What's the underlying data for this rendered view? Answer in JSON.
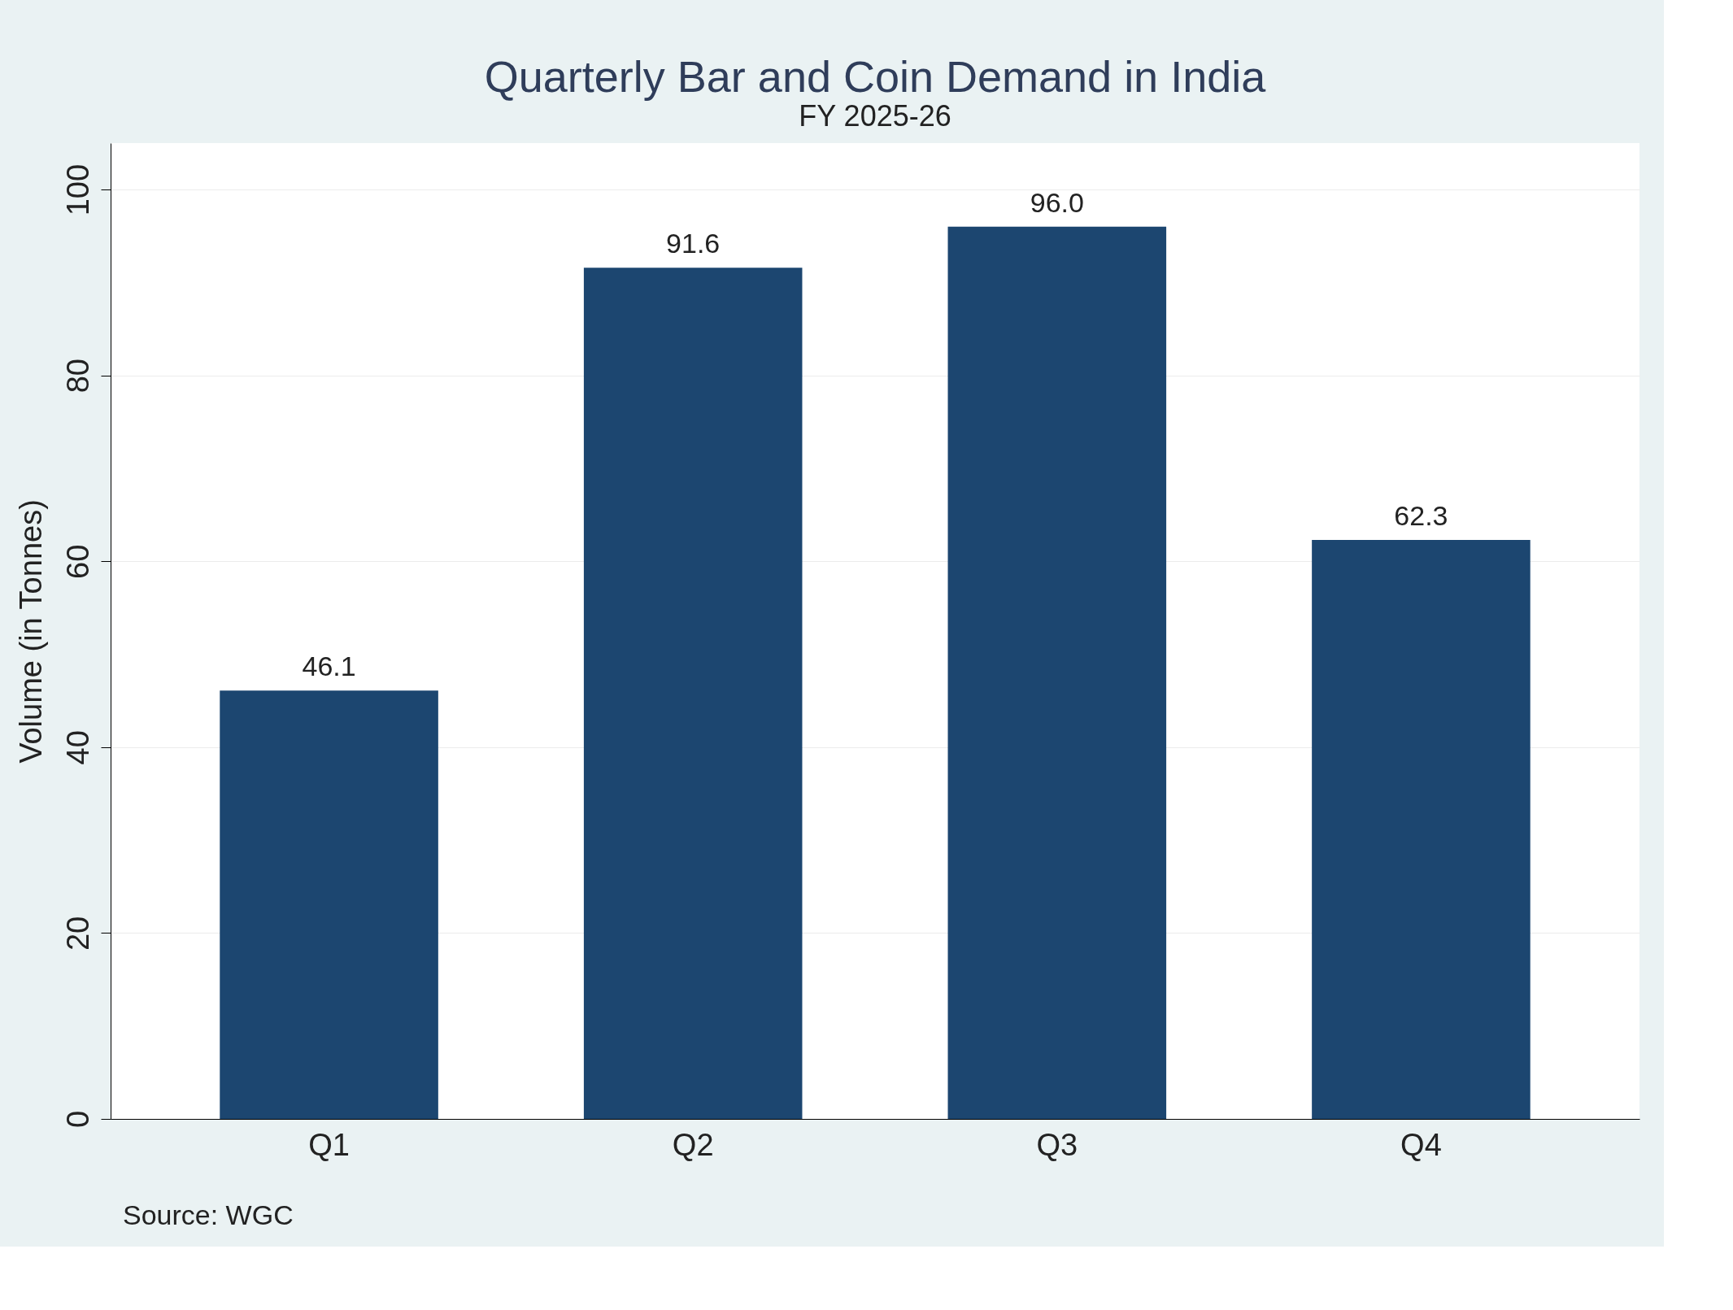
{
  "chart_data": {
    "type": "bar",
    "title": "Quarterly Bar and Coin Demand in India",
    "subtitle": "FY 2025-26",
    "ylabel": "Volume (in Tonnes)",
    "categories": [
      "Q1",
      "Q2",
      "Q3",
      "Q4"
    ],
    "values": [
      46.1,
      91.6,
      96.0,
      62.3
    ],
    "color": "#1c4670",
    "ylim": [
      0,
      105
    ],
    "yticks": [
      0,
      20,
      40,
      60,
      80,
      100
    ],
    "grid": "y",
    "value_labels": [
      "46.1",
      "91.6",
      "96.0",
      "62.3"
    ],
    "annotations": [
      "Source: WGC"
    ]
  }
}
